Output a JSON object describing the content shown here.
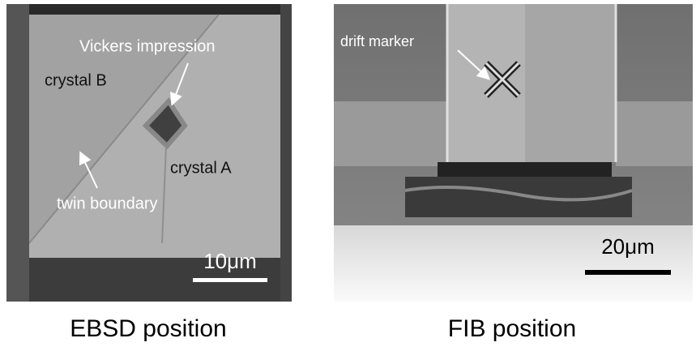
{
  "panels": [
    {
      "labels": [
        "Vickers impression",
        "crystal B",
        "crystal A",
        "twin boundary"
      ],
      "scale_bar": "10μm",
      "caption": "EBSD position"
    },
    {
      "labels": [
        "drift marker"
      ],
      "scale_bar": "20μm",
      "caption": "FIB position"
    }
  ]
}
